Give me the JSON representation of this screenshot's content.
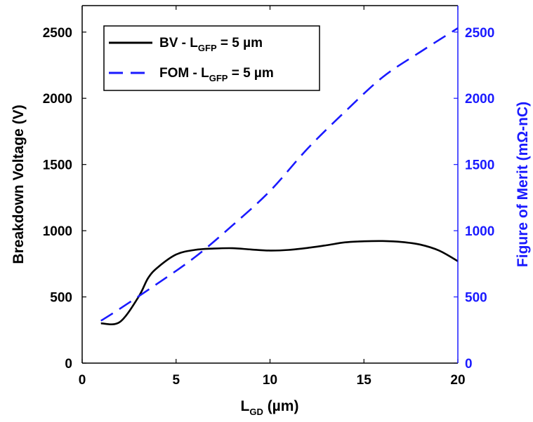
{
  "chart_data": {
    "type": "line",
    "x_axis": {
      "label": "L",
      "label_sub": "GD",
      "label_rest": " (µm)",
      "range": [
        0,
        20
      ],
      "ticks": [
        "0",
        "5",
        "10",
        "15",
        "20"
      ]
    },
    "y_left": {
      "label": "Breakdown Voltage (V)",
      "range": [
        0,
        2700
      ],
      "ticks": [
        "0",
        "500",
        "1000",
        "1500",
        "2000",
        "2500"
      ],
      "color": "#000000"
    },
    "y_right": {
      "label": "Figure of Merit (mΩ-nC)",
      "range": [
        0,
        2700
      ],
      "ticks": [
        "0",
        "500",
        "1000",
        "1500",
        "2000",
        "2500"
      ],
      "color": "#1a1aff"
    },
    "series": [
      {
        "name": "BV - L",
        "name_sub": "GFP",
        "name_rest": " = 5 µm",
        "axis": "left",
        "color": "#000000",
        "dash": "solid",
        "x": [
          1,
          2,
          3,
          3.5,
          4,
          5,
          6,
          7,
          8,
          9,
          10,
          11,
          12,
          13,
          14,
          15,
          16,
          17,
          18,
          19,
          20
        ],
        "y": [
          300,
          310,
          500,
          640,
          720,
          820,
          855,
          865,
          868,
          858,
          850,
          855,
          870,
          890,
          912,
          920,
          922,
          915,
          895,
          850,
          770
        ]
      },
      {
        "name": "FOM - L",
        "name_sub": "GFP",
        "name_rest": " = 5 µm",
        "axis": "right",
        "color": "#1a1aff",
        "dash": "dashed",
        "x": [
          1,
          2,
          4,
          6,
          8,
          10,
          12,
          14,
          16,
          18,
          20
        ],
        "y": [
          320,
          410,
          600,
          800,
          1040,
          1300,
          1620,
          1900,
          2160,
          2350,
          2530
        ]
      }
    ],
    "legend_position": "top-left",
    "grid": false
  }
}
